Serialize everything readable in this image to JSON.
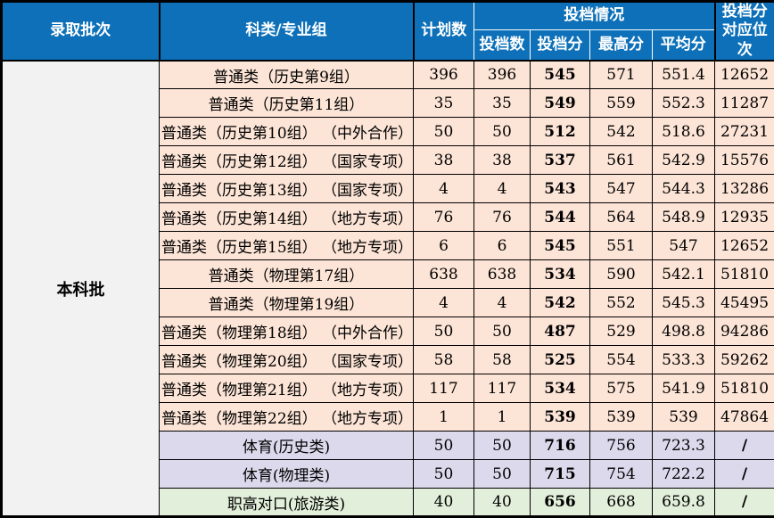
{
  "colors": {
    "header_bg": "#0d70b8",
    "header_text": "#ffffff",
    "row_general": "#fce4d6",
    "row_sports": "#dcd9ec",
    "row_vocational": "#e2efda",
    "batch_cell_bg": "#f2f2f2",
    "border_color": "#000000"
  },
  "header": {
    "batch": "录取批次",
    "category": "科类/专业组",
    "plan": "计划数",
    "situation": "投档情况",
    "sub": {
      "filed_count": "投档数",
      "filed_score": "投档分",
      "max_score": "最高分",
      "avg_score": "平均分"
    },
    "rank": "投档分\n对应位次"
  },
  "batch": {
    "label": "本科批"
  },
  "rows": [
    {
      "type": "general",
      "category": "普通类（历史第9组）",
      "plan": "396",
      "filed_count": "396",
      "filed_score": "545",
      "max_score": "571",
      "avg_score": "551.4",
      "rank": "12652"
    },
    {
      "type": "general",
      "category": "普通类（历史第11组）",
      "plan": "35",
      "filed_count": "35",
      "filed_score": "549",
      "max_score": "559",
      "avg_score": "552.3",
      "rank": "11287"
    },
    {
      "type": "general",
      "category": "普通类（历史第10组） （中外合作）",
      "plan": "50",
      "filed_count": "50",
      "filed_score": "512",
      "max_score": "542",
      "avg_score": "518.6",
      "rank": "27231"
    },
    {
      "type": "general",
      "category": "普通类（历史第12组） （国家专项）",
      "plan": "38",
      "filed_count": "38",
      "filed_score": "537",
      "max_score": "561",
      "avg_score": "542.9",
      "rank": "15576"
    },
    {
      "type": "general",
      "category": "普通类（历史第13组） （国家专项）",
      "plan": "4",
      "filed_count": "4",
      "filed_score": "543",
      "max_score": "547",
      "avg_score": "544.3",
      "rank": "13286"
    },
    {
      "type": "general",
      "category": "普通类（历史第14组） （地方专项）",
      "plan": "76",
      "filed_count": "76",
      "filed_score": "544",
      "max_score": "564",
      "avg_score": "548.9",
      "rank": "12935"
    },
    {
      "type": "general",
      "category": "普通类（历史第15组） （地方专项）",
      "plan": "6",
      "filed_count": "6",
      "filed_score": "545",
      "max_score": "551",
      "avg_score": "547",
      "rank": "12652"
    },
    {
      "type": "general",
      "category": "普通类（物理第17组）",
      "plan": "638",
      "filed_count": "638",
      "filed_score": "534",
      "max_score": "590",
      "avg_score": "542.1",
      "rank": "51810"
    },
    {
      "type": "general",
      "category": "普通类（物理第19组）",
      "plan": "4",
      "filed_count": "4",
      "filed_score": "542",
      "max_score": "552",
      "avg_score": "545.3",
      "rank": "45495"
    },
    {
      "type": "general",
      "category": "普通类（物理第18组） （中外合作）",
      "plan": "50",
      "filed_count": "50",
      "filed_score": "487",
      "max_score": "529",
      "avg_score": "498.8",
      "rank": "94286"
    },
    {
      "type": "general",
      "category": "普通类（物理第20组） （国家专项）",
      "plan": "58",
      "filed_count": "58",
      "filed_score": "525",
      "max_score": "554",
      "avg_score": "533.3",
      "rank": "59262"
    },
    {
      "type": "general",
      "category": "普通类（物理第21组） （地方专项）",
      "plan": "117",
      "filed_count": "117",
      "filed_score": "534",
      "max_score": "575",
      "avg_score": "541.9",
      "rank": "51810"
    },
    {
      "type": "general",
      "category": "普通类（物理第22组） （地方专项）",
      "plan": "1",
      "filed_count": "1",
      "filed_score": "539",
      "max_score": "539",
      "avg_score": "539",
      "rank": "47864"
    },
    {
      "type": "sports",
      "category": "体育(历史类)",
      "plan": "50",
      "filed_count": "50",
      "filed_score": "716",
      "max_score": "756",
      "avg_score": "723.3",
      "rank": "/"
    },
    {
      "type": "sports",
      "category": "体育(物理类)",
      "plan": "50",
      "filed_count": "50",
      "filed_score": "715",
      "max_score": "754",
      "avg_score": "722.2",
      "rank": "/"
    },
    {
      "type": "vocational",
      "category": "职高对口(旅游类)",
      "plan": "40",
      "filed_count": "40",
      "filed_score": "656",
      "max_score": "668",
      "avg_score": "659.8",
      "rank": "/"
    }
  ]
}
